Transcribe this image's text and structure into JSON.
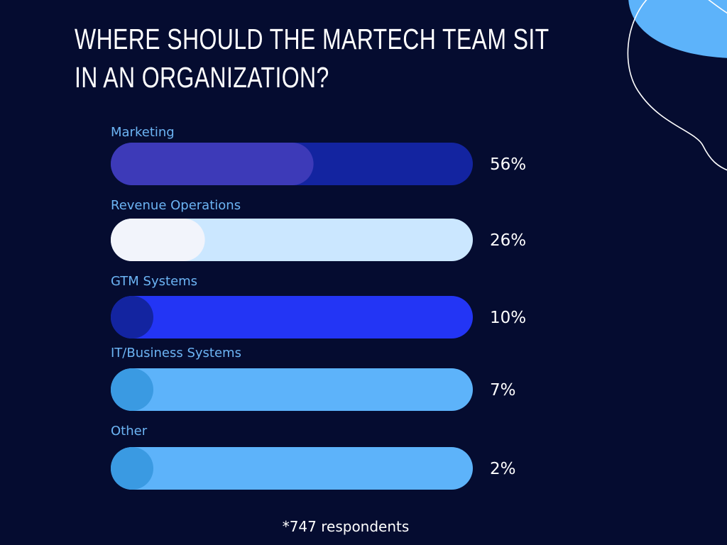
{
  "title_lines": [
    "WHERE SHOULD THE MARTECH TEAM SIT",
    "IN AN ORGANIZATION?"
  ],
  "footnote": "*747 respondents",
  "chart_data": {
    "type": "bar",
    "orientation": "horizontal",
    "title": "WHERE SHOULD THE MARTECH TEAM SIT IN AN ORGANIZATION?",
    "categories": [
      "Marketing",
      "Revenue Operations",
      "GTM Systems",
      "IT/Business Systems",
      "Other"
    ],
    "values": [
      56,
      26,
      10,
      7,
      2
    ],
    "value_labels": [
      "56%",
      "26%",
      "10%",
      "7%",
      "2%"
    ],
    "unit": "%",
    "xlim": [
      0,
      100
    ],
    "grid": false,
    "legend": "none",
    "bar_colors": [
      {
        "track": "#1324a0",
        "fill": "#3d3ab8"
      },
      {
        "track": "#cbe7ff",
        "fill": "#f2f4fb"
      },
      {
        "track": "#2335f5",
        "fill": "#1324a0"
      },
      {
        "track": "#5db3fa",
        "fill": "#3a9ae2"
      },
      {
        "track": "#5db3fa",
        "fill": "#3a9ae2"
      }
    ]
  },
  "colors": {
    "background": "#050c30",
    "title": "#ffffff",
    "category_label": "#6cb4f4",
    "accent_blob": "#5db3fa"
  }
}
